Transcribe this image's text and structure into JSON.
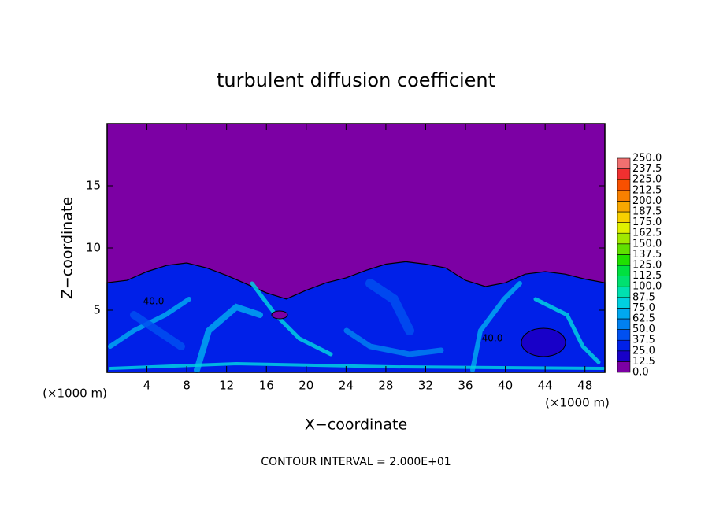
{
  "chart_data": {
    "type": "contour",
    "title": "turbulent diffusion coefficient",
    "x_label": "X−coordinate",
    "y_label": "Z−coordinate",
    "x_unit_left": "(×1000 m)",
    "x_unit_right": "(×1000 m)",
    "footer": "CONTOUR INTERVAL = 2.000E+01",
    "annotations": [
      "40.0",
      "40.0"
    ],
    "xlim": [
      0,
      50
    ],
    "xticks": [
      4,
      8,
      12,
      16,
      20,
      24,
      28,
      32,
      36,
      40,
      44,
      48
    ],
    "ylim": [
      0,
      20
    ],
    "yticks": [
      5,
      10,
      15
    ],
    "colorbar": {
      "ticks": [
        {
          "value": 0,
          "label": "0.0"
        },
        {
          "value": 12.5,
          "label": "12.5"
        },
        {
          "value": 25,
          "label": "25.0"
        },
        {
          "value": 37.5,
          "label": "37.5"
        },
        {
          "value": 50,
          "label": "50.0"
        },
        {
          "value": 62.5,
          "label": "62.5"
        },
        {
          "value": 75,
          "label": "75.0"
        },
        {
          "value": 87.5,
          "label": "87.5"
        },
        {
          "value": 100,
          "label": "100.0"
        },
        {
          "value": 112.5,
          "label": "112.5"
        },
        {
          "value": 125,
          "label": "125.0"
        },
        {
          "value": 137.5,
          "label": "137.5"
        },
        {
          "value": 150,
          "label": "150.0"
        },
        {
          "value": 162.5,
          "label": "162.5"
        },
        {
          "value": 175,
          "label": "175.0"
        },
        {
          "value": 187.5,
          "label": "187.5"
        },
        {
          "value": 200,
          "label": "200.0"
        },
        {
          "value": 212.5,
          "label": "212.5"
        },
        {
          "value": 225,
          "label": "225.0"
        },
        {
          "value": 237.5,
          "label": "237.5"
        },
        {
          "value": 250,
          "label": "250.0"
        }
      ],
      "colors": [
        "#7c00a4",
        "#1800c8",
        "#0020e8",
        "#0050f0",
        "#0080f0",
        "#00a8f0",
        "#00d0e0",
        "#00e0b0",
        "#00e070",
        "#00e040",
        "#20e000",
        "#60e000",
        "#a0e800",
        "#e0f000",
        "#f8d000",
        "#f8a800",
        "#f88000",
        "#f85000",
        "#f03030",
        "#f07070"
      ]
    }
  }
}
